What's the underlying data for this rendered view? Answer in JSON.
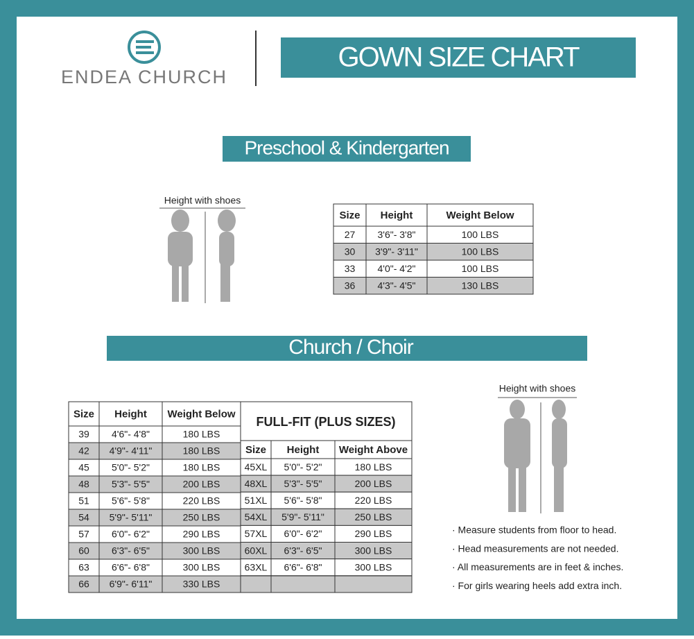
{
  "brand": "ENDEA CHURCH",
  "title": "GOWN SIZE CHART",
  "preschool": {
    "heading": "Preschool & Kindergarten",
    "figure_caption": "Height with shoes",
    "table": {
      "columns": [
        "Size",
        "Height",
        "Weight Below"
      ],
      "rows": [
        [
          "27",
          "3'6\"- 3'8\"",
          "100 LBS"
        ],
        [
          "30",
          "3'9\"- 3'11\"",
          "100 LBS"
        ],
        [
          "33",
          "4'0\"- 4'2\"",
          "100 LBS"
        ],
        [
          "36",
          "4'3\"- 4'5\"",
          "130 LBS"
        ]
      ]
    }
  },
  "church": {
    "heading": "Church / Choir",
    "table": {
      "columns": [
        "Size",
        "Height",
        "Weight Below"
      ],
      "rows": [
        [
          "39",
          "4'6\"- 4'8\"",
          "180 LBS"
        ],
        [
          "42",
          "4'9\"- 4'11\"",
          "180 LBS"
        ],
        [
          "45",
          "5'0\"- 5'2\"",
          "180 LBS"
        ],
        [
          "48",
          "5'3\"- 5'5\"",
          "200 LBS"
        ],
        [
          "51",
          "5'6\"- 5'8\"",
          "220 LBS"
        ],
        [
          "54",
          "5'9\"- 5'11\"",
          "250 LBS"
        ],
        [
          "57",
          "6'0\"- 6'2\"",
          "290 LBS"
        ],
        [
          "60",
          "6'3\"- 6'5\"",
          "300 LBS"
        ],
        [
          "63",
          "6'6\"- 6'8\"",
          "300 LBS"
        ],
        [
          "66",
          "6'9\"- 6'11\"",
          "330 LBS"
        ]
      ]
    },
    "plus": {
      "title": "FULL-FIT (PLUS SIZES)",
      "columns": [
        "Size",
        "Height",
        "Weight Above"
      ],
      "rows": [
        [
          "45XL",
          "5'0\"- 5'2\"",
          "180 LBS"
        ],
        [
          "48XL",
          "5'3\"- 5'5\"",
          "200 LBS"
        ],
        [
          "51XL",
          "5'6\"- 5'8\"",
          "220 LBS"
        ],
        [
          "54XL",
          "5'9\"- 5'11\"",
          "250 LBS"
        ],
        [
          "57XL",
          "6'0\"- 6'2\"",
          "290 LBS"
        ],
        [
          "60XL",
          "6'3\"- 6'5\"",
          "300 LBS"
        ],
        [
          "63XL",
          "6'6\"- 6'8\"",
          "300 LBS"
        ]
      ]
    },
    "figure_caption": "Height with shoes",
    "notes": [
      "· Measure students from floor to head.",
      "· Head measurements are not needed.",
      "· All measurements are in feet & inches.",
      "· For girls wearing heels add extra inch."
    ]
  }
}
